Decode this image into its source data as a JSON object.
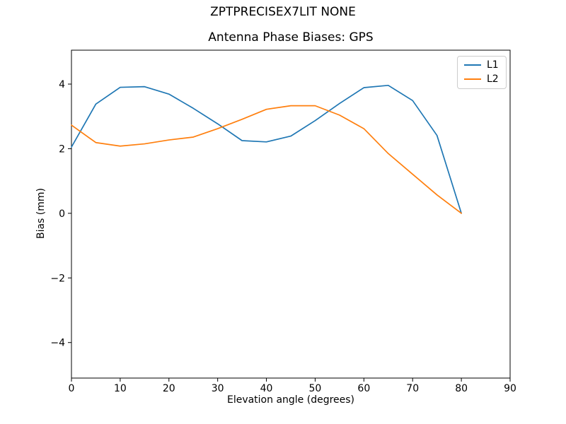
{
  "figure": {
    "background": "#ffffff",
    "text_color": "#000000"
  },
  "chart_data": {
    "type": "line",
    "suptitle": "ZPTPRECISEX7LIT NONE",
    "title": "Antenna Phase Biases: GPS",
    "xlabel": "Elevation angle (degrees)",
    "ylabel": "Bias (mm)",
    "x": [
      0,
      5,
      10,
      15,
      20,
      25,
      30,
      35,
      40,
      45,
      50,
      55,
      60,
      65,
      70,
      75,
      80
    ],
    "series": [
      {
        "name": "L1",
        "color": "#1f77b4",
        "values": [
          2.05,
          3.38,
          3.9,
          3.92,
          3.69,
          3.25,
          2.77,
          2.25,
          2.21,
          2.39,
          2.87,
          3.4,
          3.89,
          3.96,
          3.49,
          2.41,
          0.0
        ]
      },
      {
        "name": "L2",
        "color": "#ff7f0e",
        "values": [
          2.73,
          2.19,
          2.08,
          2.15,
          2.27,
          2.36,
          2.62,
          2.91,
          3.22,
          3.33,
          3.33,
          3.04,
          2.62,
          1.85,
          1.21,
          0.57,
          0.0
        ]
      }
    ],
    "xlim": [
      0,
      90
    ],
    "ylim": [
      -5.1,
      5.05
    ],
    "xticks": [
      0,
      10,
      20,
      30,
      40,
      50,
      60,
      70,
      80,
      90
    ],
    "yticks": [
      -4,
      -2,
      0,
      2,
      4
    ],
    "grid": false,
    "legend_position": "upper right"
  }
}
